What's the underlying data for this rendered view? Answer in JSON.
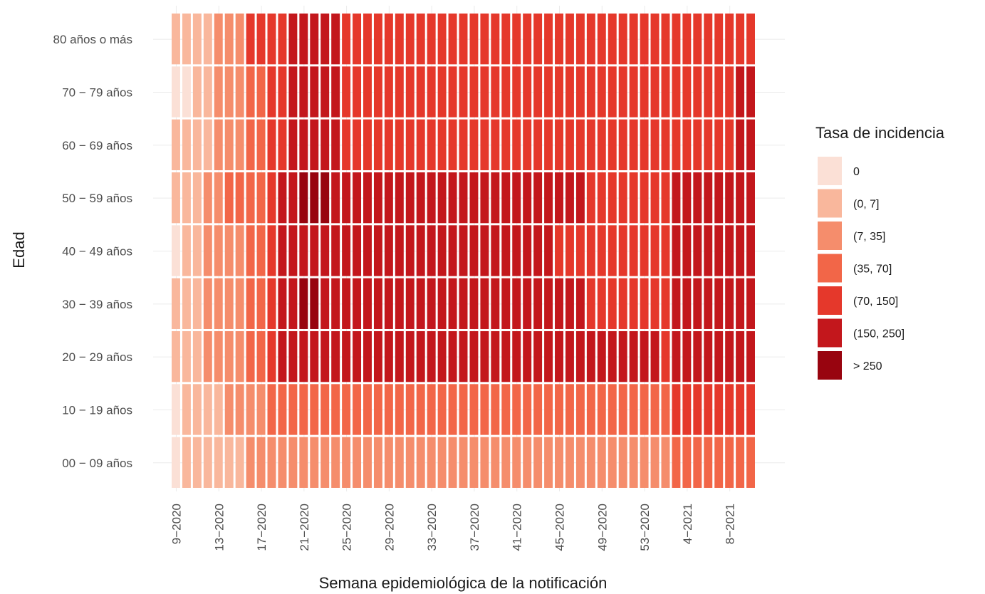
{
  "chart_data": {
    "type": "heatmap",
    "title": "",
    "xlabel": "Semana epidemiológica de la notificación",
    "ylabel": "Edad",
    "y_categories": [
      "00 − 09 años",
      "10 − 19 años",
      "20 − 29 años",
      "30 − 39 años",
      "40 − 49 años",
      "50 − 59 años",
      "60 − 69 años",
      "70 − 79 años",
      "80 años o más"
    ],
    "x_categories": [
      "9−2020",
      "10−2020",
      "11−2020",
      "12−2020",
      "13−2020",
      "14−2020",
      "15−2020",
      "16−2020",
      "17−2020",
      "18−2020",
      "19−2020",
      "20−2020",
      "21−2020",
      "22−2020",
      "23−2020",
      "24−2020",
      "25−2020",
      "26−2020",
      "27−2020",
      "28−2020",
      "29−2020",
      "30−2020",
      "31−2020",
      "32−2020",
      "33−2020",
      "34−2020",
      "35−2020",
      "36−2020",
      "37−2020",
      "38−2020",
      "39−2020",
      "40−2020",
      "41−2020",
      "42−2020",
      "43−2020",
      "44−2020",
      "45−2020",
      "46−2020",
      "47−2020",
      "48−2020",
      "49−2020",
      "50−2020",
      "51−2020",
      "52−2020",
      "53−2020",
      "1−2021",
      "2−2021",
      "3−2021",
      "4−2021",
      "5−2021",
      "6−2021",
      "7−2021",
      "8−2021",
      "9−2021",
      "10−2021"
    ],
    "x_tick_labels": [
      "9−2020",
      "13−2020",
      "17−2020",
      "21−2020",
      "25−2020",
      "29−2020",
      "33−2020",
      "37−2020",
      "41−2020",
      "45−2020",
      "49−2020",
      "53−2020",
      "4−2021",
      "8−2021"
    ],
    "legend": {
      "title": "Tasa de incidencia",
      "position": "right",
      "labels": [
        "0",
        "(0, 7]",
        "(7, 35]",
        "(35, 70]",
        "(70, 150]",
        "(150, 250]",
        "> 250"
      ],
      "colors": [
        "#fbe0d6",
        "#f9b79c",
        "#f58d6c",
        "#f26648",
        "#e5382b",
        "#c3171c",
        "#98040f"
      ]
    },
    "level_scale": "0 = 0, 1 = (0, 7], 2 = (7, 35], 3 = (35, 70], 4 = (70, 150], 5 = (150, 250], 6 = > 250",
    "rows": [
      {
        "age": "00 − 09 años",
        "levels": "0111111222222222222222222222222222222222222222233333333"
      },
      {
        "age": "10 − 19 años",
        "levels": "0111122223333333333333333333333333333333333333344444444"
      },
      {
        "age": "20 − 29 años",
        "levels": "1112222334555555555555555555555555555555555555455555555"
      },
      {
        "age": "30 − 39 años",
        "levels": "1112222334556655555555555555555555555554444444455555555"
      },
      {
        "age": "40 − 49 años",
        "levels": "0112222334555555555555555555555555554444444444455555555"
      },
      {
        "age": "50 − 59 años",
        "levels": "1112233334556665555555555555555555555554444444455555555"
      },
      {
        "age": "60 − 69 años",
        "levels": "1111222334455555444444444444444444444444444444444444455"
      },
      {
        "age": "70 − 79 años",
        "levels": "0011222334455555444444444444444444444444444444444444455"
      },
      {
        "age": "80 años o más",
        "levels": "1111222444455555444444444444444444444444444444444444444"
      }
    ],
    "grid": true
  }
}
